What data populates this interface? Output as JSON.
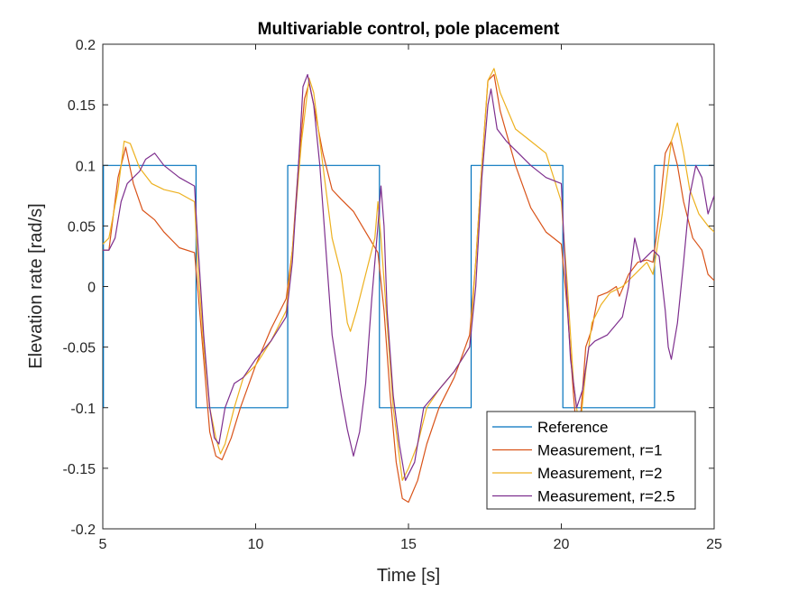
{
  "chart_data": {
    "type": "line",
    "title": "Multivariable control, pole placement",
    "xlabel": "Time [s]",
    "ylabel": "Elevation rate [rad/s]",
    "xlim": [
      5,
      25
    ],
    "ylim": [
      -0.2,
      0.2
    ],
    "xticks": [
      5,
      10,
      15,
      20,
      25
    ],
    "xtick_labels": [
      "5",
      "10",
      "15",
      "20",
      "25"
    ],
    "yticks": [
      -0.2,
      -0.15,
      -0.1,
      -0.05,
      0,
      0.05,
      0.1,
      0.15,
      0.2
    ],
    "ytick_labels": [
      "-0.2",
      "-0.15",
      "-0.1",
      "-0.05",
      "0",
      "0.05",
      "0.1",
      "0.15",
      "0.2"
    ],
    "grid": false,
    "legend_position": "bottom-right",
    "series": [
      {
        "name": "Reference",
        "color": "#0072BD",
        "x": [
          5.0,
          5.02,
          5.02,
          8.05,
          8.05,
          11.05,
          11.05,
          14.05,
          14.05,
          17.05,
          17.05,
          20.05,
          20.05,
          23.05,
          23.05,
          25.0
        ],
        "y": [
          -0.1,
          -0.1,
          0.1,
          0.1,
          -0.1,
          -0.1,
          0.1,
          0.1,
          -0.1,
          -0.1,
          0.1,
          0.1,
          -0.1,
          -0.1,
          0.1,
          0.1
        ]
      },
      {
        "name": "Measurement, r=1",
        "color": "#D95319",
        "x": [
          5.0,
          5.2,
          5.5,
          5.75,
          6.0,
          6.3,
          6.7,
          7.0,
          7.5,
          8.0,
          8.1,
          8.3,
          8.5,
          8.7,
          8.9,
          9.2,
          9.5,
          10.0,
          10.5,
          11.0,
          11.2,
          11.4,
          11.6,
          11.75,
          11.9,
          12.2,
          12.5,
          12.8,
          13.2,
          13.6,
          14.0,
          14.2,
          14.4,
          14.6,
          14.8,
          15.0,
          15.3,
          15.6,
          16.0,
          16.5,
          17.0,
          17.2,
          17.4,
          17.6,
          17.8,
          18.0,
          18.5,
          19.0,
          19.5,
          20.0,
          20.2,
          20.4,
          20.55,
          20.8,
          21.0,
          21.2,
          21.5,
          21.8,
          21.9,
          22.2,
          22.5,
          22.8,
          23.0,
          23.2,
          23.4,
          23.6,
          23.8,
          24.0,
          24.3,
          24.6,
          24.8,
          25.0
        ],
        "y": [
          0.03,
          0.03,
          0.09,
          0.115,
          0.085,
          0.063,
          0.055,
          0.045,
          0.032,
          0.028,
          0.0,
          -0.06,
          -0.12,
          -0.14,
          -0.143,
          -0.125,
          -0.1,
          -0.065,
          -0.035,
          -0.01,
          0.03,
          0.1,
          0.155,
          0.168,
          0.15,
          0.11,
          0.08,
          0.072,
          0.062,
          0.045,
          0.028,
          -0.02,
          -0.09,
          -0.145,
          -0.175,
          -0.178,
          -0.16,
          -0.13,
          -0.1,
          -0.075,
          -0.04,
          0.02,
          0.1,
          0.17,
          0.175,
          0.145,
          0.1,
          0.065,
          0.045,
          0.035,
          -0.02,
          -0.09,
          -0.135,
          -0.05,
          -0.035,
          -0.008,
          -0.005,
          0.0,
          -0.008,
          0.01,
          0.02,
          0.022,
          0.02,
          0.06,
          0.11,
          0.12,
          0.1,
          0.07,
          0.04,
          0.03,
          0.01,
          0.005
        ]
      },
      {
        "name": "Measurement, r=2",
        "color": "#EDB120",
        "x": [
          5.0,
          5.2,
          5.5,
          5.7,
          5.9,
          6.2,
          6.6,
          7.0,
          7.5,
          8.0,
          8.1,
          8.3,
          8.5,
          8.7,
          8.85,
          9.0,
          9.3,
          9.6,
          10.0,
          10.5,
          11.0,
          11.2,
          11.5,
          11.75,
          11.9,
          12.2,
          12.5,
          12.8,
          12.9,
          13.0,
          13.1,
          13.3,
          13.6,
          13.9,
          14.0,
          14.1,
          14.3,
          14.5,
          14.7,
          14.8,
          15.0,
          15.3,
          15.6,
          16.0,
          16.5,
          17.0,
          17.2,
          17.4,
          17.6,
          17.8,
          18.0,
          18.5,
          19.0,
          19.5,
          20.0,
          20.2,
          20.4,
          20.6,
          20.8,
          21.0,
          21.3,
          21.6,
          22.0,
          22.4,
          22.8,
          23.0,
          23.3,
          23.6,
          23.8,
          24.0,
          24.2,
          24.5,
          24.8,
          25.0
        ],
        "y": [
          0.035,
          0.04,
          0.08,
          0.12,
          0.118,
          0.098,
          0.085,
          0.08,
          0.077,
          0.07,
          0.02,
          -0.05,
          -0.1,
          -0.125,
          -0.138,
          -0.13,
          -0.1,
          -0.075,
          -0.065,
          -0.045,
          -0.02,
          0.03,
          0.12,
          0.172,
          0.16,
          0.1,
          0.04,
          0.01,
          -0.01,
          -0.03,
          -0.037,
          -0.02,
          0.01,
          0.04,
          0.07,
          0.04,
          -0.03,
          -0.1,
          -0.14,
          -0.16,
          -0.15,
          -0.13,
          -0.1,
          -0.085,
          -0.07,
          -0.05,
          0.02,
          0.1,
          0.17,
          0.18,
          0.16,
          0.13,
          0.12,
          0.11,
          0.07,
          0.0,
          -0.08,
          -0.12,
          -0.07,
          -0.03,
          -0.015,
          -0.005,
          0.0,
          0.01,
          0.02,
          0.01,
          0.06,
          0.12,
          0.135,
          0.11,
          0.08,
          0.06,
          0.05,
          0.045
        ]
      },
      {
        "name": "Measurement, r=2.5",
        "color": "#7E2F8E",
        "x": [
          5.0,
          5.2,
          5.4,
          5.6,
          5.8,
          6.0,
          6.2,
          6.4,
          6.7,
          7.0,
          7.5,
          8.0,
          8.1,
          8.3,
          8.5,
          8.65,
          8.8,
          9.0,
          9.3,
          9.6,
          10.0,
          10.5,
          11.0,
          11.2,
          11.4,
          11.55,
          11.7,
          11.9,
          12.1,
          12.3,
          12.5,
          12.8,
          13.0,
          13.2,
          13.4,
          13.6,
          13.8,
          14.0,
          14.1,
          14.2,
          14.3,
          14.5,
          14.7,
          14.9,
          15.2,
          15.5,
          16.0,
          16.5,
          17.0,
          17.2,
          17.4,
          17.6,
          17.7,
          17.9,
          18.2,
          18.6,
          19.0,
          19.5,
          20.0,
          20.1,
          20.3,
          20.5,
          20.7,
          20.9,
          21.1,
          21.5,
          22.0,
          22.2,
          22.4,
          22.6,
          22.8,
          23.0,
          23.2,
          23.4,
          23.5,
          23.6,
          23.8,
          24.0,
          24.2,
          24.4,
          24.6,
          24.8,
          25.0
        ],
        "y": [
          0.03,
          0.03,
          0.04,
          0.07,
          0.085,
          0.09,
          0.095,
          0.105,
          0.11,
          0.1,
          0.09,
          0.083,
          0.04,
          -0.04,
          -0.1,
          -0.125,
          -0.13,
          -0.1,
          -0.08,
          -0.075,
          -0.06,
          -0.045,
          -0.025,
          0.02,
          0.1,
          0.165,
          0.175,
          0.15,
          0.1,
          0.03,
          -0.04,
          -0.09,
          -0.118,
          -0.14,
          -0.12,
          -0.08,
          -0.01,
          0.05,
          0.083,
          0.05,
          -0.02,
          -0.09,
          -0.13,
          -0.16,
          -0.145,
          -0.1,
          -0.085,
          -0.07,
          -0.05,
          0.0,
          0.09,
          0.15,
          0.163,
          0.13,
          0.12,
          0.11,
          0.1,
          0.09,
          0.085,
          0.03,
          -0.06,
          -0.1,
          -0.085,
          -0.05,
          -0.045,
          -0.04,
          -0.025,
          0.0,
          0.04,
          0.02,
          0.025,
          0.03,
          0.025,
          -0.02,
          -0.05,
          -0.06,
          -0.03,
          0.02,
          0.075,
          0.1,
          0.09,
          0.06,
          0.075
        ]
      }
    ]
  }
}
